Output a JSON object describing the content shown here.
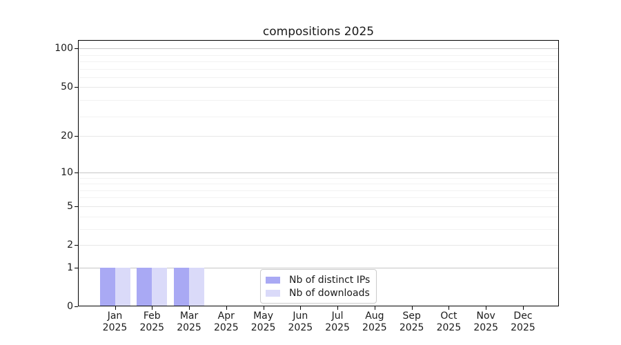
{
  "chart_data": {
    "type": "bar",
    "title": "compositions 2025",
    "year_label": "2025",
    "categories": [
      "Jan",
      "Feb",
      "Mar",
      "Apr",
      "May",
      "Jun",
      "Jul",
      "Aug",
      "Sep",
      "Oct",
      "Nov",
      "Dec"
    ],
    "series": [
      {
        "name": "Nb of distinct IPs",
        "color": "#a9a9f4",
        "values": [
          1,
          1,
          1,
          0,
          0,
          0,
          0,
          0,
          0,
          0,
          0,
          0
        ]
      },
      {
        "name": "Nb of downloads",
        "color": "#dadaf9",
        "values": [
          1,
          1,
          1,
          0,
          0,
          0,
          0,
          0,
          0,
          0,
          0,
          0
        ]
      }
    ],
    "y_axis": {
      "scale": "log10(1+v)",
      "ticks": [
        0,
        1,
        2,
        5,
        10,
        20,
        50,
        100
      ],
      "major_gridlines": [
        1,
        10,
        100
      ],
      "mid_gridlines": [
        2,
        5,
        20,
        50
      ],
      "minor_gridlines": [
        3,
        4,
        6,
        7,
        8,
        9,
        29,
        39,
        59,
        69,
        79,
        89
      ],
      "top_value": 117
    },
    "legend": {
      "position": "lower center"
    },
    "grid": true,
    "colors": {
      "bar_distinct_ips": "#a9a9f4",
      "bar_downloads": "#dadaf9",
      "major_grid": "#c6c6c6",
      "mid_grid": "#e7e7e7",
      "minor_grid": "#f2f2f2",
      "axis": "#000000",
      "background": "#ffffff",
      "text": "#1a1a1a"
    }
  }
}
